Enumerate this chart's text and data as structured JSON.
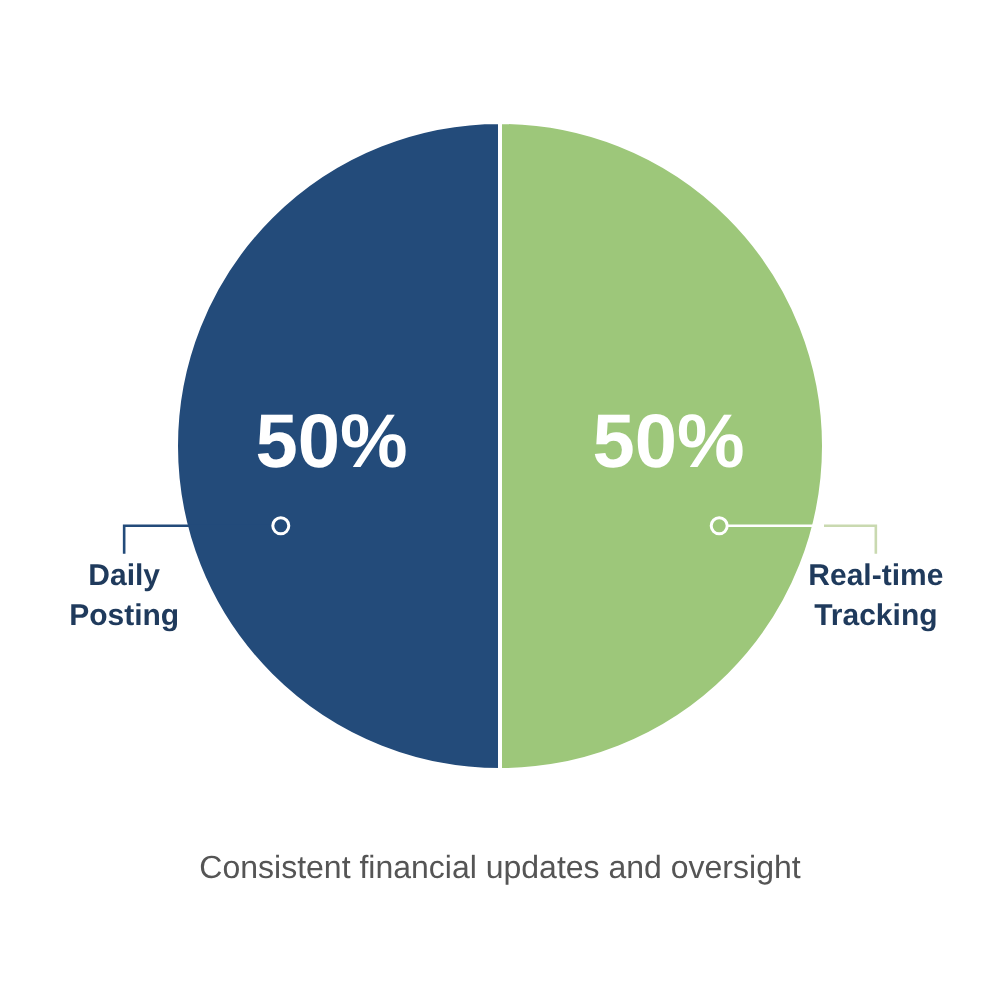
{
  "chart_data": {
    "type": "pie",
    "categories": [
      "Daily Posting",
      "Real-time Tracking"
    ],
    "values": [
      50,
      50
    ],
    "colors": [
      "#234b7a",
      "#9dc77a"
    ],
    "value_labels": [
      "50%",
      "50%"
    ],
    "legend": false,
    "annotations": [
      "Consistent financial updates and oversight"
    ]
  }
}
